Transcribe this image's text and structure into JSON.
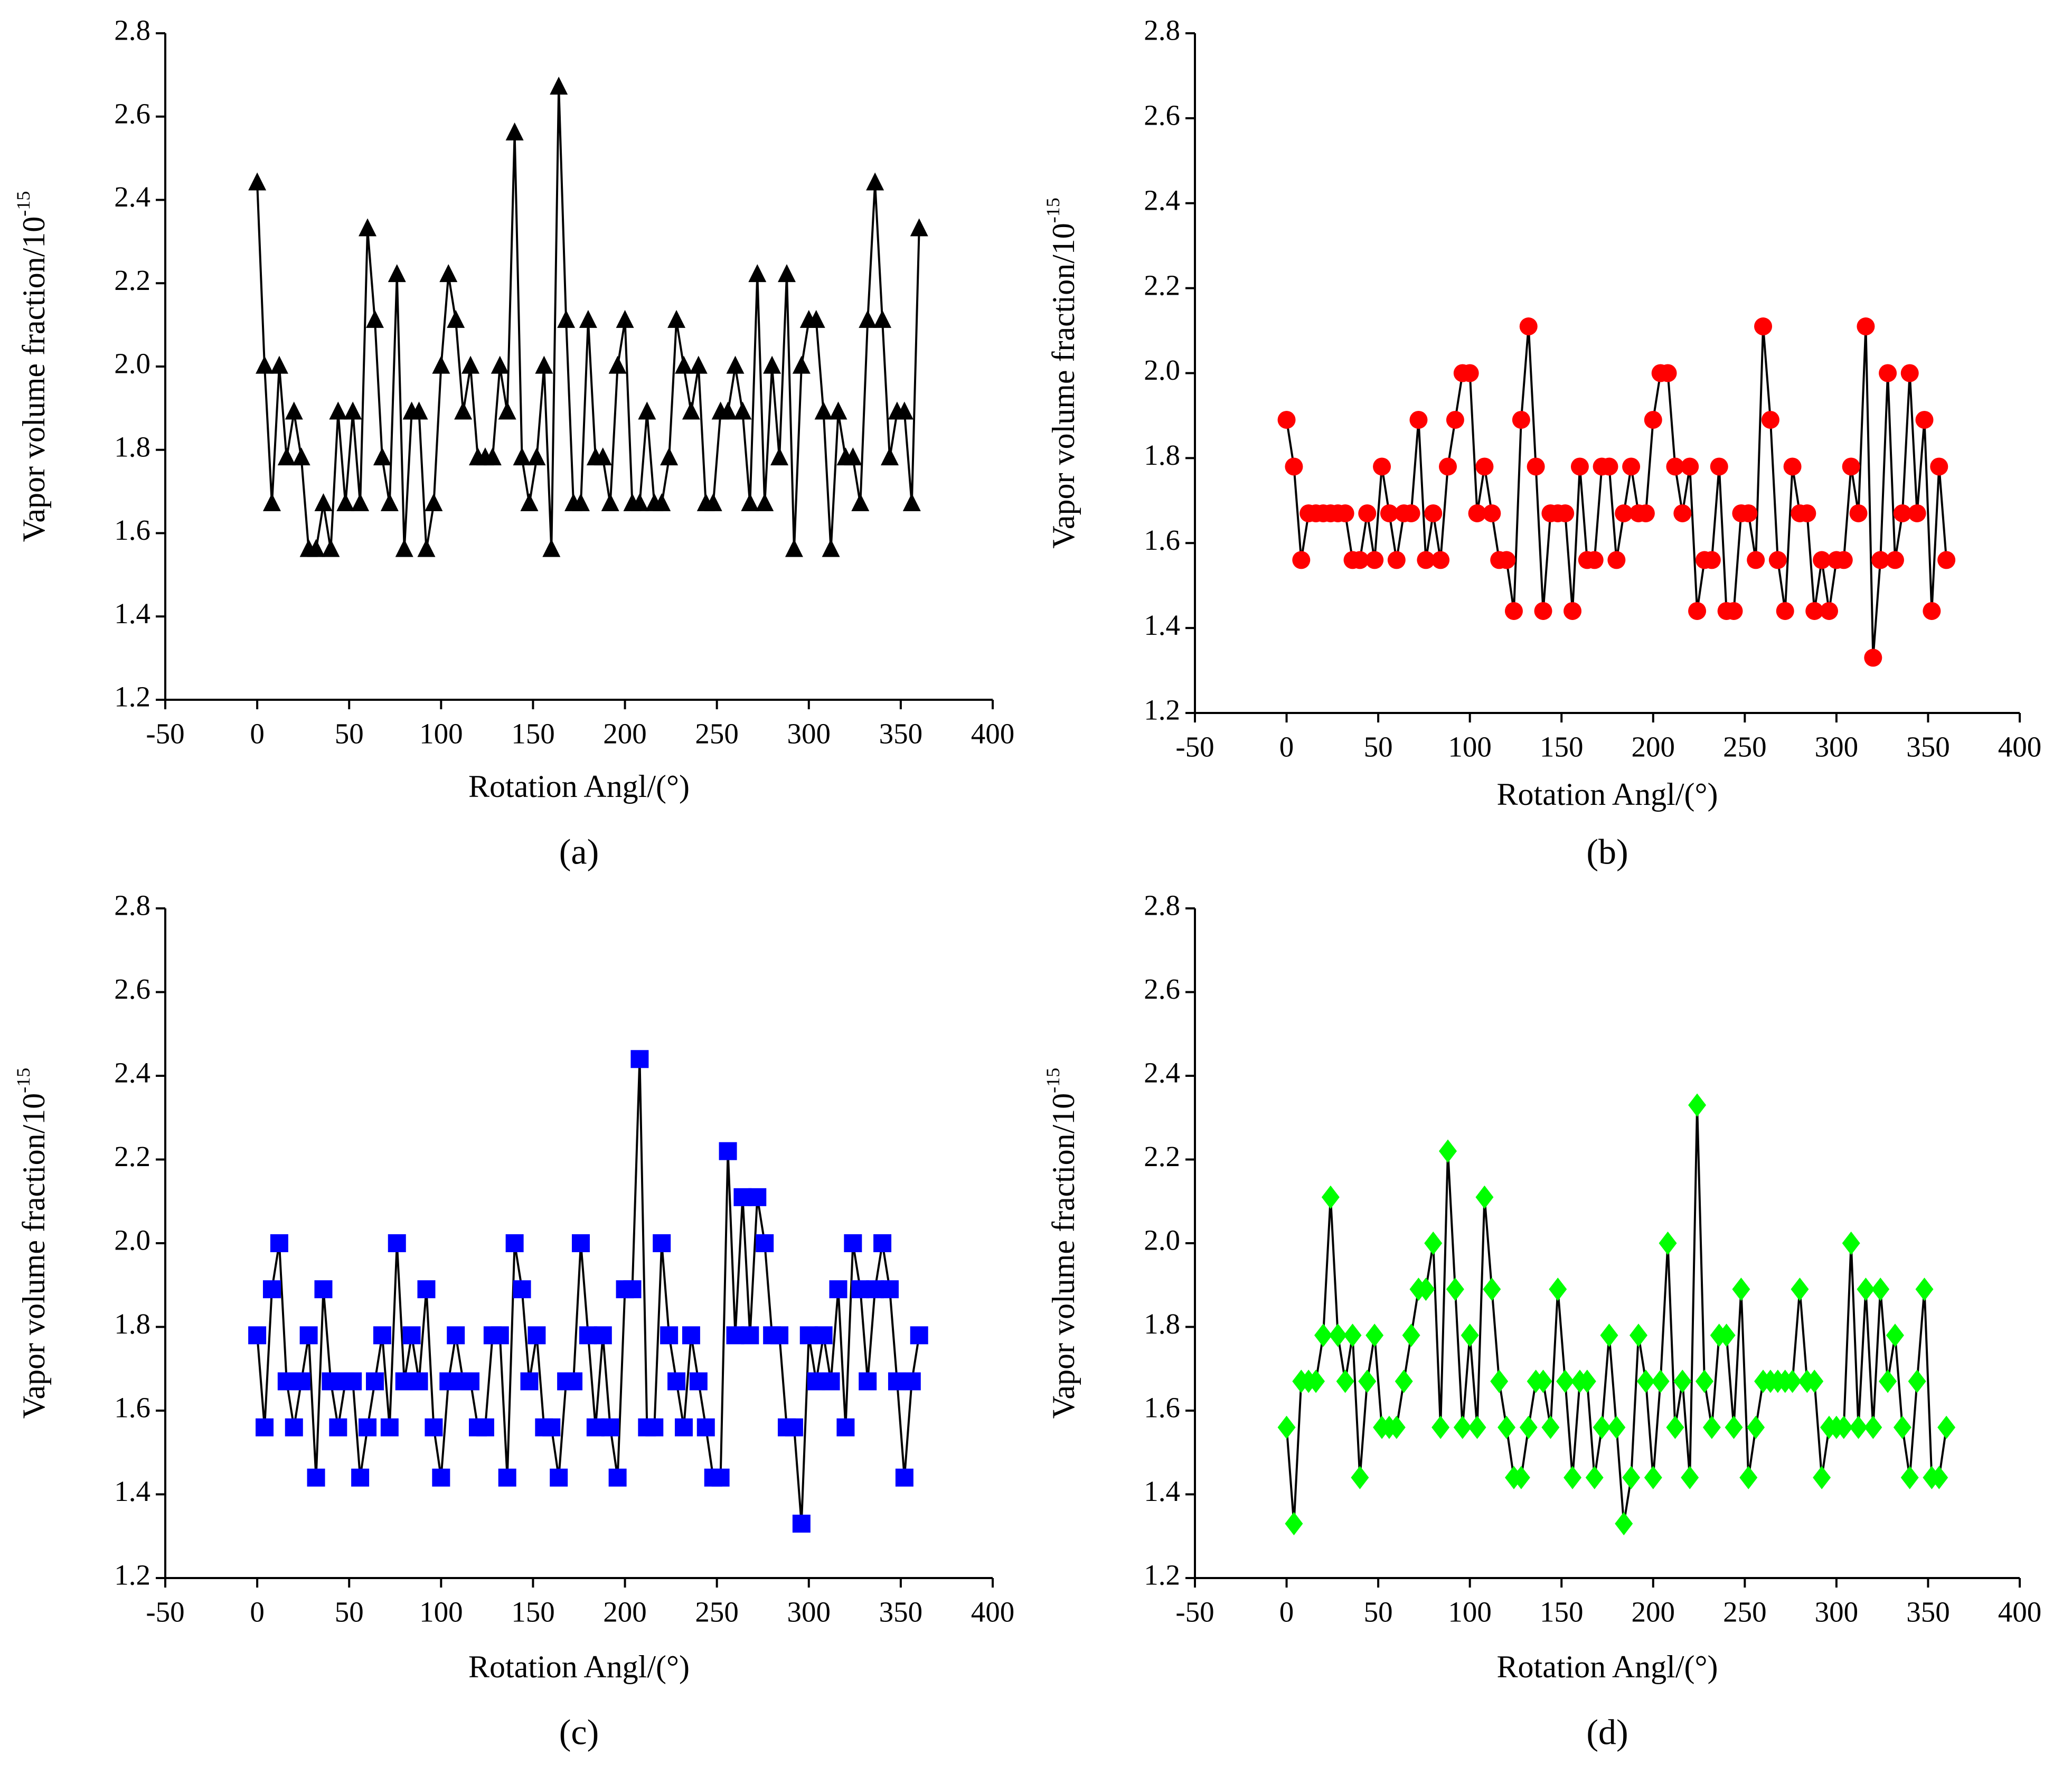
{
  "chart_data": [
    {
      "type": "line",
      "panel_label": "(a)",
      "x_label": "Rotation Angl/(°)",
      "y_label": "Vapor  volume fraction/10",
      "y_label_exponent": "-15",
      "x": [
        0,
        4,
        8,
        12,
        16,
        20,
        24,
        28,
        32,
        36,
        40,
        44,
        48,
        52,
        56,
        60,
        64,
        68,
        72,
        76,
        80,
        84,
        88,
        92,
        96,
        100,
        104,
        108,
        112,
        116,
        120,
        124,
        128,
        132,
        136,
        140,
        144,
        148,
        152,
        156,
        160,
        164,
        168,
        172,
        176,
        180,
        184,
        188,
        192,
        196,
        200,
        204,
        208,
        212,
        216,
        220,
        224,
        228,
        232,
        236,
        240,
        244,
        248,
        252,
        256,
        260,
        264,
        268,
        272,
        276,
        280,
        284,
        288,
        292,
        296,
        300,
        304,
        308,
        312,
        316,
        320,
        324,
        328,
        332,
        336,
        340,
        344,
        348,
        352,
        356,
        360
      ],
      "series": [
        {
          "color": "#000000",
          "line_color": "#000000",
          "marker": "triangle",
          "values": [
            2.44,
            2.0,
            1.67,
            2.0,
            1.78,
            1.89,
            1.78,
            1.56,
            1.56,
            1.67,
            1.56,
            1.89,
            1.67,
            1.89,
            1.67,
            2.33,
            2.11,
            1.78,
            1.67,
            2.22,
            1.56,
            1.89,
            1.89,
            1.56,
            1.67,
            2.0,
            2.22,
            2.11,
            1.89,
            2.0,
            1.78,
            1.78,
            1.78,
            2.0,
            1.89,
            2.56,
            1.78,
            1.67,
            1.78,
            2.0,
            1.56,
            2.67,
            2.11,
            1.67,
            1.67,
            2.11,
            1.78,
            1.78,
            1.67,
            2.0,
            2.11,
            1.67,
            1.67,
            1.89,
            1.67,
            1.67,
            1.78,
            2.11,
            2.0,
            1.89,
            2.0,
            1.67,
            1.67,
            1.89,
            1.89,
            2.0,
            1.89,
            1.67,
            2.22,
            1.67,
            2.0,
            1.78,
            2.22,
            1.56,
            2.0,
            2.11,
            2.11,
            1.89,
            1.56,
            1.89,
            1.78,
            1.78,
            1.67,
            2.11,
            2.44,
            2.11,
            1.78,
            1.89,
            1.89,
            1.67,
            2.33
          ]
        }
      ],
      "xlim": [
        -50,
        400
      ],
      "xticks": [
        -50,
        0,
        50,
        100,
        150,
        200,
        250,
        300,
        350,
        400
      ],
      "ylim": [
        1.2,
        2.8
      ],
      "yticks": [
        1.2,
        1.4,
        1.6,
        1.8,
        {
          "value": 2,
          "label": "2.0"
        },
        2.2,
        2.4,
        2.6,
        2.8
      ]
    },
    {
      "type": "line",
      "panel_label": "(b)",
      "x_label": "Rotation Angl/(°)",
      "y_label": "Vapor  volume fraction/10",
      "y_label_exponent": "-15",
      "x": [
        0,
        4,
        8,
        12,
        16,
        20,
        24,
        28,
        32,
        36,
        40,
        44,
        48,
        52,
        56,
        60,
        64,
        68,
        72,
        76,
        80,
        84,
        88,
        92,
        96,
        100,
        104,
        108,
        112,
        116,
        120,
        124,
        128,
        132,
        136,
        140,
        144,
        148,
        152,
        156,
        160,
        164,
        168,
        172,
        176,
        180,
        184,
        188,
        192,
        196,
        200,
        204,
        208,
        212,
        216,
        220,
        224,
        228,
        232,
        236,
        240,
        244,
        248,
        252,
        256,
        260,
        264,
        268,
        272,
        276,
        280,
        284,
        288,
        292,
        296,
        300,
        304,
        308,
        312,
        316,
        320,
        324,
        328,
        332,
        336,
        340,
        344,
        348,
        352,
        356,
        360
      ],
      "series": [
        {
          "color": "#ff0000",
          "line_color": "#000000",
          "marker": "circle",
          "values": [
            1.89,
            1.78,
            1.56,
            1.67,
            1.67,
            1.67,
            1.67,
            1.67,
            1.67,
            1.56,
            1.56,
            1.67,
            1.56,
            1.78,
            1.67,
            1.56,
            1.67,
            1.67,
            1.89,
            1.56,
            1.67,
            1.56,
            1.78,
            1.89,
            2.0,
            2.0,
            1.67,
            1.78,
            1.67,
            1.56,
            1.56,
            1.44,
            1.89,
            2.11,
            1.78,
            1.44,
            1.67,
            1.67,
            1.67,
            1.44,
            1.78,
            1.56,
            1.56,
            1.78,
            1.78,
            1.56,
            1.67,
            1.78,
            1.67,
            1.67,
            1.89,
            2.0,
            2.0,
            1.78,
            1.67,
            1.78,
            1.44,
            1.56,
            1.56,
            1.78,
            1.44,
            1.44,
            1.67,
            1.67,
            1.56,
            2.11,
            1.89,
            1.56,
            1.44,
            1.78,
            1.67,
            1.67,
            1.44,
            1.56,
            1.44,
            1.56,
            1.56,
            1.78,
            1.67,
            2.11,
            1.33,
            1.56,
            2.0,
            1.56,
            1.67,
            2.0,
            1.67,
            1.89,
            1.44,
            1.78,
            1.56
          ]
        }
      ],
      "xlim": [
        -50,
        400
      ],
      "xticks": [
        -50,
        0,
        50,
        100,
        150,
        200,
        250,
        300,
        350,
        400
      ],
      "ylim": [
        1.2,
        2.8
      ],
      "yticks": [
        1.2,
        1.4,
        1.6,
        1.8,
        {
          "value": 2,
          "label": "2.0"
        },
        2.2,
        2.4,
        2.6,
        2.8
      ]
    },
    {
      "type": "line",
      "panel_label": "(c)",
      "x_label": "Rotation Angl/(°)",
      "y_label": "Vapor  volume fraction/10",
      "y_label_exponent": "-15",
      "x": [
        0,
        4,
        8,
        12,
        16,
        20,
        24,
        28,
        32,
        36,
        40,
        44,
        48,
        52,
        56,
        60,
        64,
        68,
        72,
        76,
        80,
        84,
        88,
        92,
        96,
        100,
        104,
        108,
        112,
        116,
        120,
        124,
        128,
        132,
        136,
        140,
        144,
        148,
        152,
        156,
        160,
        164,
        168,
        172,
        176,
        180,
        184,
        188,
        192,
        196,
        200,
        204,
        208,
        212,
        216,
        220,
        224,
        228,
        232,
        236,
        240,
        244,
        248,
        252,
        256,
        260,
        264,
        268,
        272,
        276,
        280,
        284,
        288,
        292,
        296,
        300,
        304,
        308,
        312,
        316,
        320,
        324,
        328,
        332,
        336,
        340,
        344,
        348,
        352,
        356,
        360
      ],
      "series": [
        {
          "color": "#0000ff",
          "line_color": "#000000",
          "marker": "square",
          "values": [
            1.78,
            1.56,
            1.89,
            2.0,
            1.67,
            1.56,
            1.67,
            1.78,
            1.44,
            1.89,
            1.67,
            1.56,
            1.67,
            1.67,
            1.44,
            1.56,
            1.67,
            1.78,
            1.56,
            2.0,
            1.67,
            1.78,
            1.67,
            1.89,
            1.56,
            1.44,
            1.67,
            1.78,
            1.67,
            1.67,
            1.56,
            1.56,
            1.78,
            1.78,
            1.44,
            2.0,
            1.89,
            1.67,
            1.78,
            1.56,
            1.56,
            1.44,
            1.67,
            1.67,
            2.0,
            1.78,
            1.56,
            1.78,
            1.56,
            1.44,
            1.89,
            1.89,
            2.44,
            1.56,
            1.56,
            2.0,
            1.78,
            1.67,
            1.56,
            1.78,
            1.67,
            1.56,
            1.44,
            1.44,
            2.22,
            1.78,
            2.11,
            1.78,
            2.11,
            2.0,
            1.78,
            1.78,
            1.56,
            1.56,
            1.33,
            1.78,
            1.67,
            1.78,
            1.67,
            1.89,
            1.56,
            2.0,
            1.89,
            1.67,
            1.89,
            2.0,
            1.89,
            1.67,
            1.44,
            1.67,
            1.78
          ]
        }
      ],
      "xlim": [
        -50,
        400
      ],
      "xticks": [
        -50,
        0,
        50,
        100,
        150,
        200,
        250,
        300,
        350,
        400
      ],
      "ylim": [
        1.2,
        2.8
      ],
      "yticks": [
        1.2,
        1.4,
        1.6,
        1.8,
        {
          "value": 2,
          "label": "2.0"
        },
        2.2,
        2.4,
        2.6,
        2.8
      ]
    },
    {
      "type": "line",
      "panel_label": "(d)",
      "x_label": "Rotation Angl/(°)",
      "y_label": "Vapor  volume fraction/10",
      "y_label_exponent": "-15",
      "x": [
        0,
        4,
        8,
        12,
        16,
        20,
        24,
        28,
        32,
        36,
        40,
        44,
        48,
        52,
        56,
        60,
        64,
        68,
        72,
        76,
        80,
        84,
        88,
        92,
        96,
        100,
        104,
        108,
        112,
        116,
        120,
        124,
        128,
        132,
        136,
        140,
        144,
        148,
        152,
        156,
        160,
        164,
        168,
        172,
        176,
        180,
        184,
        188,
        192,
        196,
        200,
        204,
        208,
        212,
        216,
        220,
        224,
        228,
        232,
        236,
        240,
        244,
        248,
        252,
        256,
        260,
        264,
        268,
        272,
        276,
        280,
        284,
        288,
        292,
        296,
        300,
        304,
        308,
        312,
        316,
        320,
        324,
        328,
        332,
        336,
        340,
        344,
        348,
        352,
        356,
        360
      ],
      "series": [
        {
          "color": "#00ff00",
          "line_color": "#000000",
          "marker": "diamond",
          "values": [
            1.56,
            1.33,
            1.67,
            1.67,
            1.67,
            1.78,
            2.11,
            1.78,
            1.67,
            1.78,
            1.44,
            1.67,
            1.78,
            1.56,
            1.56,
            1.56,
            1.67,
            1.78,
            1.89,
            1.89,
            2.0,
            1.56,
            2.22,
            1.89,
            1.56,
            1.78,
            1.56,
            2.11,
            1.89,
            1.67,
            1.56,
            1.44,
            1.44,
            1.56,
            1.67,
            1.67,
            1.56,
            1.89,
            1.67,
            1.44,
            1.67,
            1.67,
            1.44,
            1.56,
            1.78,
            1.56,
            1.33,
            1.44,
            1.78,
            1.67,
            1.44,
            1.67,
            2.0,
            1.56,
            1.67,
            1.44,
            2.33,
            1.67,
            1.56,
            1.78,
            1.78,
            1.56,
            1.89,
            1.44,
            1.56,
            1.67,
            1.67,
            1.67,
            1.67,
            1.67,
            1.89,
            1.67,
            1.67,
            1.44,
            1.56,
            1.56,
            1.56,
            2.0,
            1.56,
            1.89,
            1.56,
            1.89,
            1.67,
            1.78,
            1.56,
            1.44,
            1.67,
            1.89,
            1.44,
            1.44,
            1.56
          ]
        }
      ],
      "xlim": [
        -50,
        400
      ],
      "xticks": [
        -50,
        0,
        50,
        100,
        150,
        200,
        250,
        300,
        350,
        400
      ],
      "ylim": [
        1.2,
        2.8
      ],
      "yticks": [
        1.2,
        1.4,
        1.6,
        1.8,
        {
          "value": 2,
          "label": "2.0"
        },
        2.2,
        2.4,
        2.6,
        2.8
      ]
    }
  ]
}
